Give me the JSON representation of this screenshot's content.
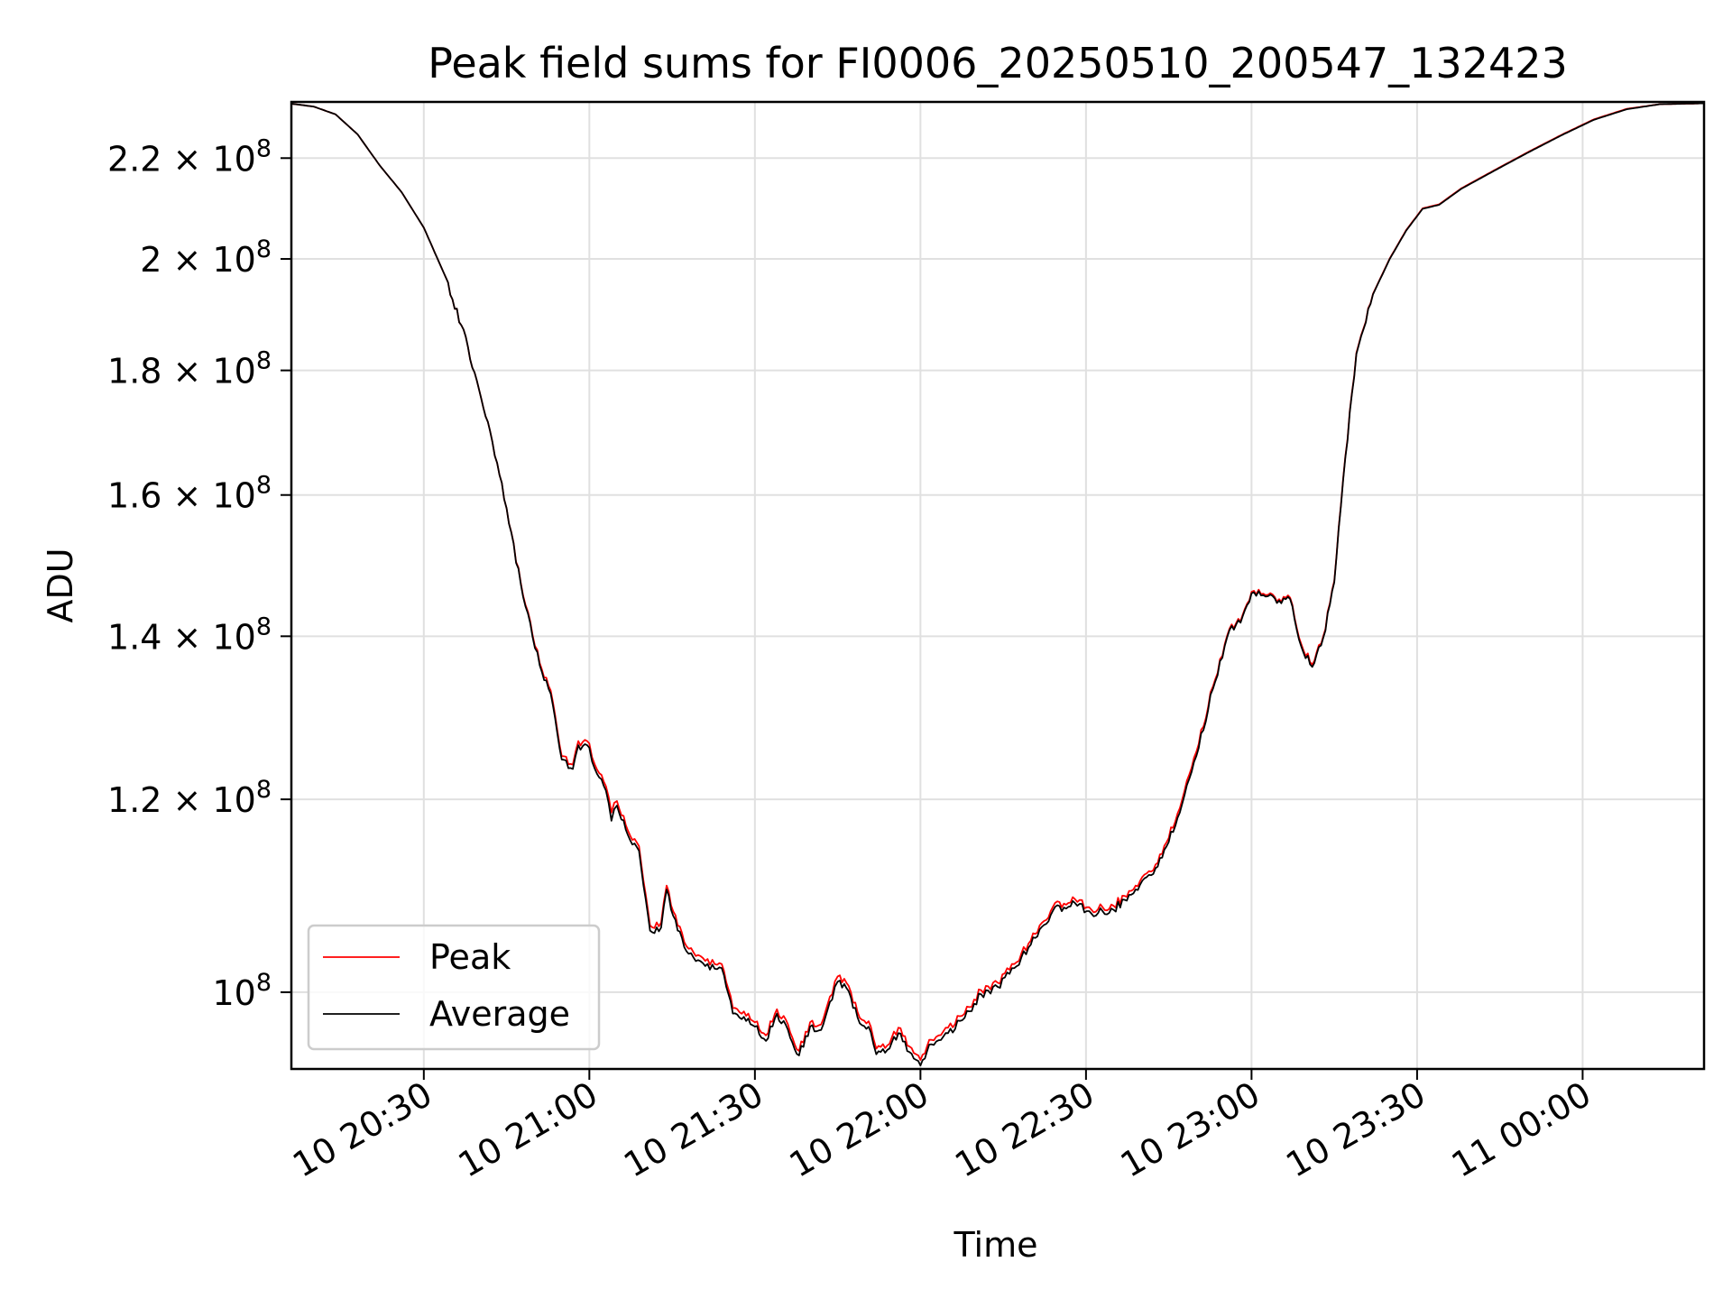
{
  "chart_data": {
    "type": "line",
    "title": "Peak field sums for FI0006_20250510_200547_132423",
    "xlabel": "Time",
    "ylabel": "ADU",
    "y_scale": "log",
    "ylim": [
      93000000,
      232000000
    ],
    "xlim": [
      "2025-05-10 20:06",
      "2025-05-11 00:22"
    ],
    "grid": true,
    "legend_position": "lower left",
    "x_ticks": [
      {
        "value": "2025-05-10 20:30",
        "label": "10 20:30"
      },
      {
        "value": "2025-05-10 21:00",
        "label": "10 21:00"
      },
      {
        "value": "2025-05-10 21:30",
        "label": "10 21:30"
      },
      {
        "value": "2025-05-10 22:00",
        "label": "10 22:00"
      },
      {
        "value": "2025-05-10 22:30",
        "label": "10 22:30"
      },
      {
        "value": "2025-05-10 23:00",
        "label": "10 23:00"
      },
      {
        "value": "2025-05-10 23:30",
        "label": "10 23:30"
      },
      {
        "value": "2025-05-11 00:00",
        "label": "11 00:00"
      }
    ],
    "y_ticks": [
      {
        "value": 220000000,
        "mantissa": "2.2",
        "base": "10",
        "exp": "8"
      },
      {
        "value": 200000000,
        "mantissa": "2",
        "base": "10",
        "exp": "8"
      },
      {
        "value": 180000000,
        "mantissa": "1.8",
        "base": "10",
        "exp": "8"
      },
      {
        "value": 160000000,
        "mantissa": "1.6",
        "base": "10",
        "exp": "8"
      },
      {
        "value": 140000000,
        "mantissa": "1.4",
        "base": "10",
        "exp": "8"
      },
      {
        "value": 120000000,
        "mantissa": "1.2",
        "base": "10",
        "exp": "8"
      },
      {
        "value": 100000000,
        "mantissa": "",
        "base": "10",
        "exp": "8"
      }
    ],
    "series": [
      {
        "name": "Peak",
        "color": "#ff0000",
        "points": [
          [
            "2025-05-10 20:06",
            231600000
          ],
          [
            "2025-05-10 20:10",
            231000000
          ],
          [
            "2025-05-10 20:14",
            229300000
          ],
          [
            "2025-05-10 20:18",
            225000000
          ],
          [
            "2025-05-10 20:22",
            218500000
          ],
          [
            "2025-05-10 20:26",
            213000000
          ],
          [
            "2025-05-10 20:30",
            206000000
          ],
          [
            "2025-05-10 20:34",
            196500000
          ],
          [
            "2025-05-10 20:38",
            184000000
          ],
          [
            "2025-05-10 20:42",
            170000000
          ],
          [
            "2025-05-10 20:45",
            158000000
          ],
          [
            "2025-05-10 20:48",
            145500000
          ],
          [
            "2025-05-10 20:51",
            136500000
          ],
          [
            "2025-05-10 20:53",
            133000000
          ],
          [
            "2025-05-10 20:55",
            125000000
          ],
          [
            "2025-05-10 20:57",
            124000000
          ],
          [
            "2025-05-10 20:58",
            126800000
          ],
          [
            "2025-05-10 21:00",
            126500000
          ],
          [
            "2025-05-10 21:01",
            124000000
          ],
          [
            "2025-05-10 21:03",
            121500000
          ],
          [
            "2025-05-10 21:04",
            118500000
          ],
          [
            "2025-05-10 21:05",
            119800000
          ],
          [
            "2025-05-10 21:07",
            116500000
          ],
          [
            "2025-05-10 21:09",
            114800000
          ],
          [
            "2025-05-10 21:11",
            106500000
          ],
          [
            "2025-05-10 21:13",
            106800000
          ],
          [
            "2025-05-10 21:14",
            110600000
          ],
          [
            "2025-05-10 21:16",
            106500000
          ],
          [
            "2025-05-10 21:18",
            104200000
          ],
          [
            "2025-05-10 21:21",
            103000000
          ],
          [
            "2025-05-10 21:24",
            102700000
          ],
          [
            "2025-05-10 21:26",
            98500000
          ],
          [
            "2025-05-10 21:28",
            98200000
          ],
          [
            "2025-05-10 21:30",
            97200000
          ],
          [
            "2025-05-10 21:32",
            96000000
          ],
          [
            "2025-05-10 21:34",
            98400000
          ],
          [
            "2025-05-10 21:36",
            97000000
          ],
          [
            "2025-05-10 21:38",
            94600000
          ],
          [
            "2025-05-10 21:40",
            97200000
          ],
          [
            "2025-05-10 21:42",
            97000000
          ],
          [
            "2025-05-10 21:44",
            99800000
          ],
          [
            "2025-05-10 21:45",
            101500000
          ],
          [
            "2025-05-10 21:47",
            100600000
          ],
          [
            "2025-05-10 21:49",
            97600000
          ],
          [
            "2025-05-10 21:51",
            96800000
          ],
          [
            "2025-05-10 21:52",
            94800000
          ],
          [
            "2025-05-10 21:54",
            95100000
          ],
          [
            "2025-05-10 21:56",
            96700000
          ],
          [
            "2025-05-10 21:58",
            95000000
          ],
          [
            "2025-05-10 22:00",
            93800000
          ],
          [
            "2025-05-10 22:02",
            95600000
          ],
          [
            "2025-05-10 22:05",
            96700000
          ],
          [
            "2025-05-10 22:08",
            98000000
          ],
          [
            "2025-05-10 22:11",
            100200000
          ],
          [
            "2025-05-10 22:14",
            100900000
          ],
          [
            "2025-05-10 22:17",
            102700000
          ],
          [
            "2025-05-10 22:20",
            105000000
          ],
          [
            "2025-05-10 22:24",
            108400000
          ],
          [
            "2025-05-10 22:28",
            109200000
          ],
          [
            "2025-05-10 22:31",
            108100000
          ],
          [
            "2025-05-10 22:35",
            108500000
          ],
          [
            "2025-05-10 22:39",
            110600000
          ],
          [
            "2025-05-10 22:43",
            113000000
          ],
          [
            "2025-05-10 22:47",
            119000000
          ],
          [
            "2025-05-10 22:50",
            125500000
          ],
          [
            "2025-05-10 22:53",
            133500000
          ],
          [
            "2025-05-10 22:56",
            141000000
          ],
          [
            "2025-05-10 22:58",
            142000000
          ],
          [
            "2025-05-10 23:00",
            146000000
          ],
          [
            "2025-05-10 23:03",
            145600000
          ],
          [
            "2025-05-10 23:05",
            145000000
          ],
          [
            "2025-05-10 23:07",
            145200000
          ],
          [
            "2025-05-10 23:09",
            139000000
          ],
          [
            "2025-05-10 23:11",
            136300000
          ],
          [
            "2025-05-10 23:13",
            140000000
          ],
          [
            "2025-05-10 23:15",
            147500000
          ],
          [
            "2025-05-10 23:17",
            166000000
          ],
          [
            "2025-05-10 23:19",
            183000000
          ],
          [
            "2025-05-10 23:22",
            193500000
          ],
          [
            "2025-05-10 23:25",
            200000000
          ],
          [
            "2025-05-10 23:28",
            205500000
          ],
          [
            "2025-05-10 23:31",
            209800000
          ],
          [
            "2025-05-10 23:34",
            210600000
          ],
          [
            "2025-05-10 23:38",
            213800000
          ],
          [
            "2025-05-10 23:44",
            217500000
          ],
          [
            "2025-05-10 23:50",
            221200000
          ],
          [
            "2025-05-10 23:56",
            224800000
          ],
          [
            "2025-05-11 00:02",
            228200000
          ],
          [
            "2025-05-11 00:08",
            230500000
          ],
          [
            "2025-05-11 00:14",
            231500000
          ],
          [
            "2025-05-11 00:22",
            231700000
          ]
        ]
      },
      {
        "name": "Average",
        "color": "#000000",
        "points": [
          [
            "2025-05-10 20:06",
            231600000
          ],
          [
            "2025-05-10 20:10",
            231000000
          ],
          [
            "2025-05-10 20:14",
            229300000
          ],
          [
            "2025-05-10 20:18",
            225000000
          ],
          [
            "2025-05-10 20:22",
            218500000
          ],
          [
            "2025-05-10 20:26",
            213000000
          ],
          [
            "2025-05-10 20:30",
            206000000
          ],
          [
            "2025-05-10 20:34",
            196500000
          ],
          [
            "2025-05-10 20:38",
            184000000
          ],
          [
            "2025-05-10 20:42",
            170000000
          ],
          [
            "2025-05-10 20:45",
            158000000
          ],
          [
            "2025-05-10 20:48",
            145300000
          ],
          [
            "2025-05-10 20:51",
            136200000
          ],
          [
            "2025-05-10 20:53",
            132600000
          ],
          [
            "2025-05-10 20:55",
            124600000
          ],
          [
            "2025-05-10 20:57",
            123500000
          ],
          [
            "2025-05-10 20:58",
            126300000
          ],
          [
            "2025-05-10 21:00",
            126000000
          ],
          [
            "2025-05-10 21:01",
            123500000
          ],
          [
            "2025-05-10 21:03",
            121000000
          ],
          [
            "2025-05-10 21:04",
            117600000
          ],
          [
            "2025-05-10 21:05",
            119300000
          ],
          [
            "2025-05-10 21:07",
            116000000
          ],
          [
            "2025-05-10 21:09",
            114300000
          ],
          [
            "2025-05-10 21:11",
            106000000
          ],
          [
            "2025-05-10 21:13",
            106300000
          ],
          [
            "2025-05-10 21:14",
            110200000
          ],
          [
            "2025-05-10 21:16",
            106000000
          ],
          [
            "2025-05-10 21:18",
            103700000
          ],
          [
            "2025-05-10 21:21",
            102500000
          ],
          [
            "2025-05-10 21:24",
            102300000
          ],
          [
            "2025-05-10 21:26",
            98000000
          ],
          [
            "2025-05-10 21:28",
            97700000
          ],
          [
            "2025-05-10 21:30",
            96800000
          ],
          [
            "2025-05-10 21:32",
            95500000
          ],
          [
            "2025-05-10 21:34",
            98000000
          ],
          [
            "2025-05-10 21:36",
            96500000
          ],
          [
            "2025-05-10 21:38",
            94200000
          ],
          [
            "2025-05-10 21:40",
            96800000
          ],
          [
            "2025-05-10 21:42",
            96500000
          ],
          [
            "2025-05-10 21:44",
            99300000
          ],
          [
            "2025-05-10 21:45",
            101000000
          ],
          [
            "2025-05-10 21:47",
            100100000
          ],
          [
            "2025-05-10 21:49",
            97100000
          ],
          [
            "2025-05-10 21:51",
            96300000
          ],
          [
            "2025-05-10 21:52",
            94300000
          ],
          [
            "2025-05-10 21:54",
            94700000
          ],
          [
            "2025-05-10 21:56",
            96200000
          ],
          [
            "2025-05-10 21:58",
            94500000
          ],
          [
            "2025-05-10 22:00",
            93300000
          ],
          [
            "2025-05-10 22:02",
            95200000
          ],
          [
            "2025-05-10 22:05",
            96200000
          ],
          [
            "2025-05-10 22:08",
            97600000
          ],
          [
            "2025-05-10 22:11",
            99800000
          ],
          [
            "2025-05-10 22:14",
            100500000
          ],
          [
            "2025-05-10 22:17",
            102300000
          ],
          [
            "2025-05-10 22:20",
            104600000
          ],
          [
            "2025-05-10 22:24",
            108000000
          ],
          [
            "2025-05-10 22:28",
            108800000
          ],
          [
            "2025-05-10 22:31",
            107700000
          ],
          [
            "2025-05-10 22:35",
            108100000
          ],
          [
            "2025-05-10 22:39",
            110200000
          ],
          [
            "2025-05-10 22:43",
            112600000
          ],
          [
            "2025-05-10 22:47",
            118500000
          ],
          [
            "2025-05-10 22:50",
            125000000
          ],
          [
            "2025-05-10 22:53",
            133200000
          ],
          [
            "2025-05-10 22:56",
            140800000
          ],
          [
            "2025-05-10 22:58",
            141800000
          ],
          [
            "2025-05-10 23:00",
            145800000
          ],
          [
            "2025-05-10 23:03",
            145400000
          ],
          [
            "2025-05-10 23:05",
            144800000
          ],
          [
            "2025-05-10 23:07",
            145000000
          ],
          [
            "2025-05-10 23:09",
            138700000
          ],
          [
            "2025-05-10 23:11",
            136000000
          ],
          [
            "2025-05-10 23:13",
            139800000
          ],
          [
            "2025-05-10 23:15",
            147300000
          ],
          [
            "2025-05-10 23:17",
            165800000
          ],
          [
            "2025-05-10 23:19",
            182800000
          ],
          [
            "2025-05-10 23:22",
            193400000
          ],
          [
            "2025-05-10 23:25",
            199900000
          ],
          [
            "2025-05-10 23:28",
            205400000
          ],
          [
            "2025-05-10 23:31",
            209700000
          ],
          [
            "2025-05-10 23:34",
            210500000
          ],
          [
            "2025-05-10 23:38",
            213700000
          ],
          [
            "2025-05-10 23:44",
            217400000
          ],
          [
            "2025-05-10 23:50",
            221100000
          ],
          [
            "2025-05-10 23:56",
            224700000
          ],
          [
            "2025-05-11 00:02",
            228100000
          ],
          [
            "2025-05-11 00:08",
            230400000
          ],
          [
            "2025-05-11 00:14",
            231500000
          ],
          [
            "2025-05-11 00:22",
            231700000
          ]
        ]
      }
    ]
  }
}
